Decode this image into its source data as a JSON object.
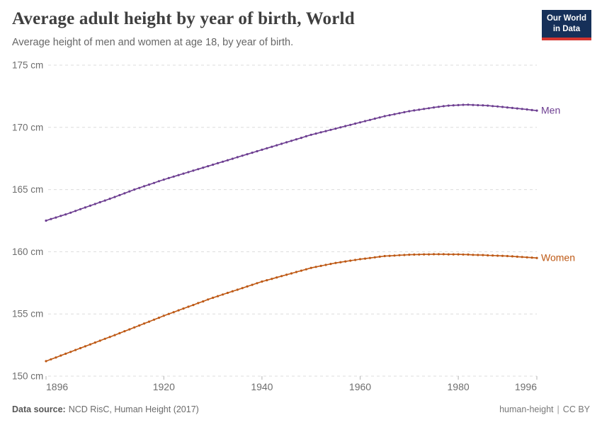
{
  "header": {
    "title": "Average adult height by year of birth, World",
    "subtitle": "Average height of men and women at age 18, by year of birth.",
    "logo_line1": "Our World",
    "logo_line2": "in Data"
  },
  "footer": {
    "source_label": "Data source:",
    "source_value": "NCD RisC, Human Height (2017)",
    "slug": "human-height",
    "separator": "|",
    "license": "CC BY"
  },
  "colors": {
    "men": "#6d3e91",
    "women": "#be5915",
    "grid": "#dcdcdc",
    "tick": "#b5b5b5",
    "axis_text": "#6e6e6e",
    "title_text": "#3f3f3f",
    "logo_bg": "#163059",
    "logo_stripe": "#d5352f"
  },
  "chart_data": {
    "type": "line",
    "title": "Average adult height by year of birth, World",
    "subtitle": "Average height of men and women at age 18, by year of birth.",
    "xlabel": "",
    "ylabel": "",
    "unit": "cm",
    "xlim": [
      1896,
      1996
    ],
    "ylim": [
      150,
      175
    ],
    "yticks": [
      175,
      170,
      165,
      160,
      155,
      150
    ],
    "xticks": [
      1896,
      1920,
      1940,
      1960,
      1980,
      1996
    ],
    "grid": "horizontal-dashed",
    "legend": "line-end-labels",
    "x": [
      1896,
      1897,
      1898,
      1899,
      1900,
      1901,
      1902,
      1903,
      1904,
      1905,
      1906,
      1907,
      1908,
      1909,
      1910,
      1911,
      1912,
      1913,
      1914,
      1915,
      1916,
      1917,
      1918,
      1919,
      1920,
      1921,
      1922,
      1923,
      1924,
      1925,
      1926,
      1927,
      1928,
      1929,
      1930,
      1931,
      1932,
      1933,
      1934,
      1935,
      1936,
      1937,
      1938,
      1939,
      1940,
      1941,
      1942,
      1943,
      1944,
      1945,
      1946,
      1947,
      1948,
      1949,
      1950,
      1951,
      1952,
      1953,
      1954,
      1955,
      1956,
      1957,
      1958,
      1959,
      1960,
      1961,
      1962,
      1963,
      1964,
      1965,
      1966,
      1967,
      1968,
      1969,
      1970,
      1971,
      1972,
      1973,
      1974,
      1975,
      1976,
      1977,
      1978,
      1979,
      1980,
      1981,
      1982,
      1983,
      1984,
      1985,
      1986,
      1987,
      1988,
      1989,
      1990,
      1991,
      1992,
      1993,
      1994,
      1995,
      1996
    ],
    "series": [
      {
        "name": "Men",
        "color": "#6d3e91",
        "values": [
          162.5,
          162.63,
          162.75,
          162.88,
          163.0,
          163.14,
          163.28,
          163.42,
          163.56,
          163.7,
          163.84,
          163.98,
          164.12,
          164.26,
          164.4,
          164.55,
          164.7,
          164.85,
          165.0,
          165.13,
          165.27,
          165.4,
          165.53,
          165.67,
          165.8,
          165.92,
          166.04,
          166.16,
          166.28,
          166.4,
          166.52,
          166.64,
          166.76,
          166.88,
          167.0,
          167.12,
          167.24,
          167.36,
          167.48,
          167.6,
          167.72,
          167.84,
          167.96,
          168.08,
          168.2,
          168.32,
          168.44,
          168.56,
          168.68,
          168.8,
          168.92,
          169.04,
          169.16,
          169.28,
          169.4,
          169.5,
          169.6,
          169.7,
          169.8,
          169.9,
          170.0,
          170.1,
          170.2,
          170.3,
          170.4,
          170.5,
          170.6,
          170.7,
          170.8,
          170.9,
          170.98,
          171.06,
          171.14,
          171.22,
          171.3,
          171.36,
          171.42,
          171.48,
          171.54,
          171.6,
          171.65,
          171.7,
          171.75,
          171.77,
          171.79,
          171.81,
          171.82,
          171.8,
          171.78,
          171.77,
          171.75,
          171.71,
          171.68,
          171.64,
          171.6,
          171.56,
          171.52,
          171.48,
          171.44,
          171.39,
          171.35
        ]
      },
      {
        "name": "Women",
        "color": "#be5915",
        "values": [
          151.2,
          151.35,
          151.5,
          151.65,
          151.8,
          151.95,
          152.1,
          152.25,
          152.4,
          152.55,
          152.7,
          152.85,
          153.0,
          153.15,
          153.3,
          153.45,
          153.61,
          153.76,
          153.92,
          154.07,
          154.23,
          154.38,
          154.54,
          154.69,
          154.85,
          155.0,
          155.14,
          155.29,
          155.43,
          155.58,
          155.72,
          155.87,
          156.01,
          156.16,
          156.3,
          156.43,
          156.56,
          156.69,
          156.82,
          156.95,
          157.08,
          157.21,
          157.34,
          157.47,
          157.6,
          157.71,
          157.82,
          157.93,
          158.04,
          158.15,
          158.26,
          158.37,
          158.48,
          158.59,
          158.7,
          158.78,
          158.86,
          158.94,
          159.02,
          159.1,
          159.16,
          159.22,
          159.28,
          159.34,
          159.4,
          159.45,
          159.5,
          159.55,
          159.6,
          159.65,
          159.67,
          159.69,
          159.72,
          159.74,
          159.76,
          159.77,
          159.78,
          159.79,
          159.79,
          159.8,
          159.8,
          159.8,
          159.79,
          159.79,
          159.79,
          159.78,
          159.77,
          159.75,
          159.74,
          159.73,
          159.71,
          159.7,
          159.68,
          159.67,
          159.65,
          159.63,
          159.6,
          159.58,
          159.55,
          159.53,
          159.5
        ]
      }
    ]
  }
}
